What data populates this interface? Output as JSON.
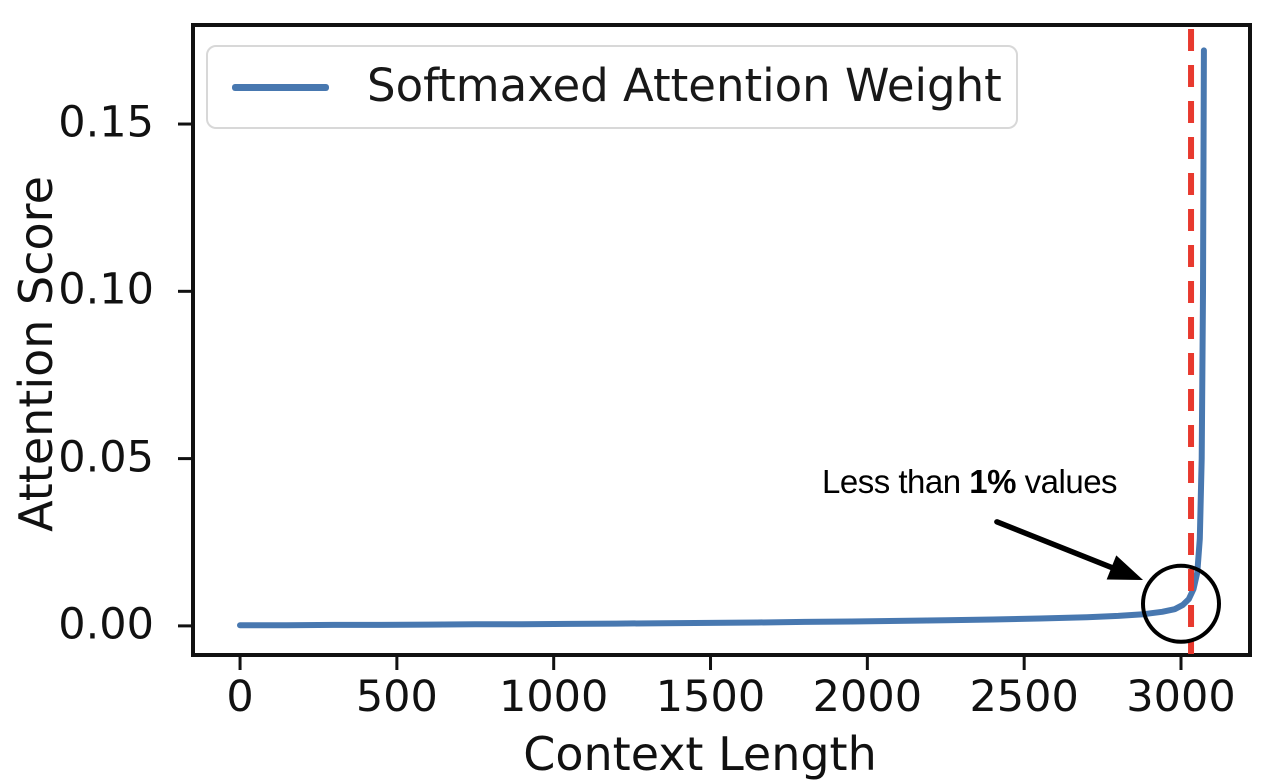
{
  "figure": {
    "background": "#ffffff",
    "spine_color": "#111111"
  },
  "chart_data": {
    "type": "line",
    "title": "",
    "xlabel": "Context Length",
    "ylabel": "Attention Score",
    "xlim": [
      -150,
      3220
    ],
    "ylim": [
      -0.0087,
      0.1796
    ],
    "xticks": [
      0,
      500,
      1000,
      1500,
      2000,
      2500,
      3000
    ],
    "xtick_labels": [
      "0",
      "500",
      "1000",
      "1500",
      "2000",
      "2500",
      "3000"
    ],
    "yticks": [
      0,
      0.05,
      0.1,
      0.15
    ],
    "ytick_labels": [
      "0.00",
      "0.05",
      "0.10",
      "0.15"
    ],
    "grid": false,
    "legend_position": "upper left",
    "series": [
      {
        "name": "Softmaxed Attention Weight",
        "color": "#4878B0",
        "x": [
          0,
          150,
          300,
          450,
          600,
          750,
          900,
          1050,
          1200,
          1350,
          1500,
          1650,
          1800,
          1950,
          2100,
          2250,
          2400,
          2550,
          2700,
          2800,
          2880,
          2940,
          2980,
          3005,
          3025,
          3040,
          3052,
          3060,
          3066,
          3070,
          3073
        ],
        "y": [
          0.0002,
          0.0002,
          0.0003,
          0.0003,
          0.0004,
          0.0005,
          0.0005,
          0.0006,
          0.0007,
          0.0008,
          0.0009,
          0.001,
          0.0012,
          0.0013,
          0.0015,
          0.0017,
          0.0019,
          0.0022,
          0.0026,
          0.003,
          0.0035,
          0.0042,
          0.005,
          0.0062,
          0.008,
          0.011,
          0.016,
          0.026,
          0.05,
          0.1,
          0.172
        ]
      }
    ],
    "vline": {
      "x": 3032,
      "color": "#E8392E",
      "style": "dashed",
      "dash": [
        22,
        14
      ]
    },
    "annotation": {
      "text_prefix": "Less than ",
      "text_bold": "1%",
      "text_suffix": " values",
      "color": "#000000",
      "arrow_from": [
        2413,
        0.0311
      ],
      "arrow_to": [
        2879,
        0.0137
      ],
      "circle_center": [
        3000,
        0.0066
      ],
      "circle_radius_px": 38
    }
  }
}
